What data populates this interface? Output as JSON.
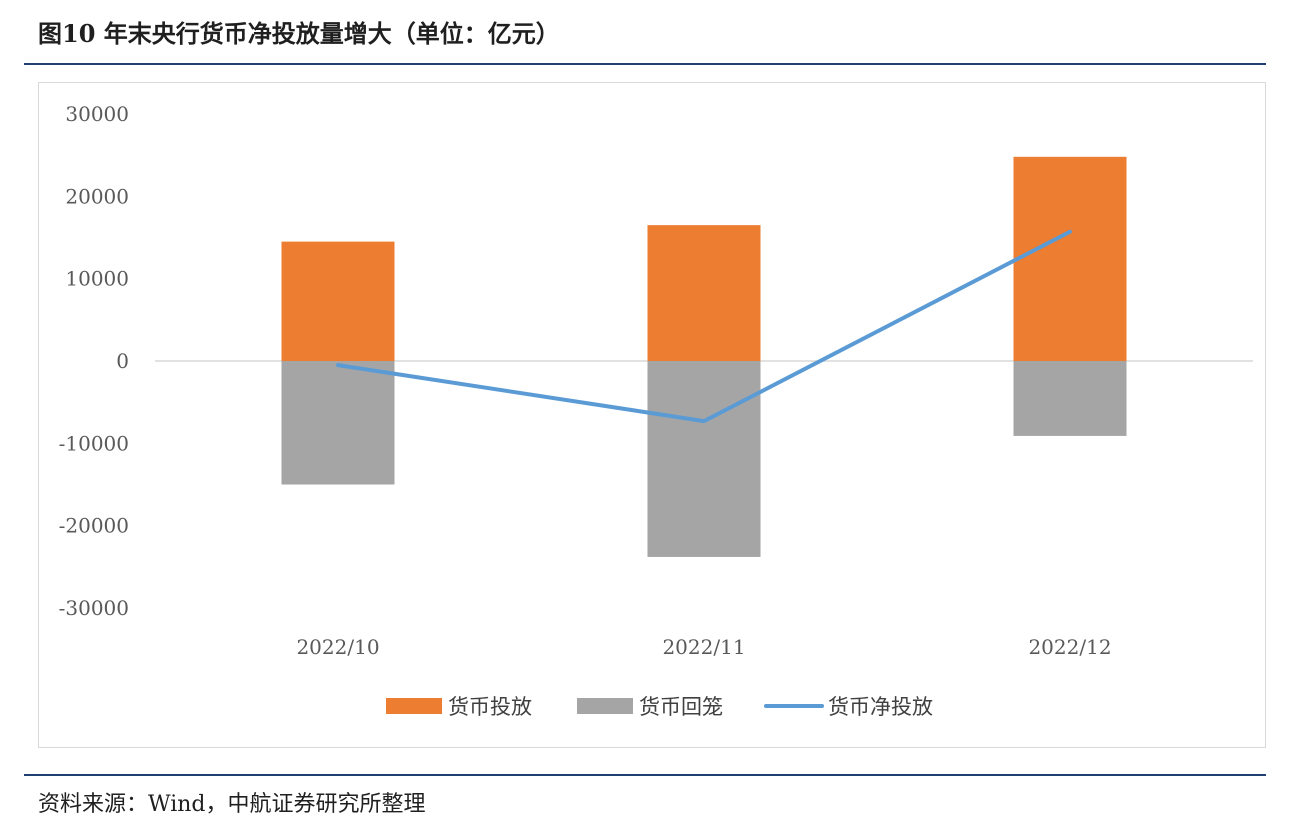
{
  "figure": {
    "title": "图10  年末央行货币净投放量增大（单位：亿元）",
    "source": "资料来源：Wind，中航证券研究所整理"
  },
  "chart_data": {
    "type": "bar",
    "categories": [
      "2022/10",
      "2022/11",
      "2022/12"
    ],
    "ylim": [
      -30000,
      30000
    ],
    "yticks": [
      30000,
      20000,
      10000,
      0,
      -10000,
      -20000,
      -30000
    ],
    "ytick_labels": [
      "30000",
      "20000",
      "10000",
      "0",
      "-10000",
      "-20000",
      "-30000"
    ],
    "grid": false,
    "legend_position": "bottom",
    "series": [
      {
        "name": "货币投放",
        "kind": "bar",
        "color": "#ED7D31",
        "values": [
          14500,
          16500,
          24800
        ]
      },
      {
        "name": "货币回笼",
        "kind": "bar",
        "color": "#A5A5A5",
        "values": [
          -15000,
          -23800,
          -9100
        ]
      },
      {
        "name": "货币净投放",
        "kind": "line",
        "color": "#5B9BD5",
        "values": [
          -500,
          -7300,
          15700
        ]
      }
    ]
  }
}
